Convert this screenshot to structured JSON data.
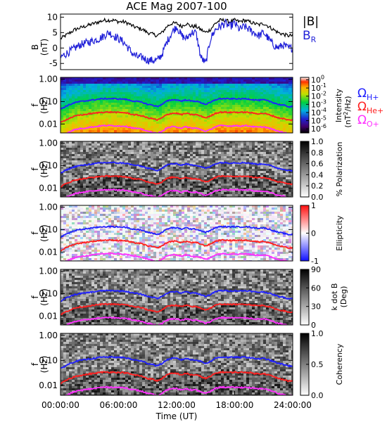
{
  "title": "ACE Mag 2007-100",
  "xaxis": {
    "label": "Time (UT)",
    "ticks": [
      "00:00:00",
      "06:00:00",
      "12:00:00",
      "18:00:00",
      "24:00:00"
    ],
    "tick_hours": [
      0,
      6,
      12,
      18,
      24
    ],
    "range_hours": [
      0,
      24
    ]
  },
  "legend": {
    "b_total": "|B|",
    "b_r_main": "B",
    "b_r_sub": "R",
    "omega_symbol": "Ω",
    "h_sub": "H+",
    "he_sub": "He+",
    "o_sub": "O+"
  },
  "colors": {
    "b_total": "#000000",
    "b_r": "#1f1fd8",
    "h": "#2020ff",
    "he": "#ff2020",
    "o": "#ff30ff"
  },
  "freq_axis": {
    "label_main": "f",
    "label_unit": "(Hz)",
    "ticks": [
      "1.00",
      "0.10",
      "0.01"
    ],
    "tick_values": [
      1.0,
      0.1,
      0.01
    ],
    "range": [
      0.004,
      1.2
    ],
    "scale": "log"
  },
  "chart_data": [
    {
      "type": "line",
      "name": "magnetic-field",
      "ylabel_main": "B",
      "ylabel_unit": "(nT)",
      "ylim": [
        -7,
        11
      ],
      "yticks": [
        "10",
        "5",
        "0",
        "-5"
      ],
      "ytick_values": [
        10,
        5,
        0,
        -5
      ],
      "x_hours": [
        0,
        0.5,
        1,
        1.5,
        2,
        2.5,
        3,
        3.5,
        4,
        4.5,
        5,
        5.5,
        6,
        6.5,
        7,
        7.5,
        8,
        8.5,
        9,
        9.5,
        10,
        10.5,
        11,
        11.5,
        12,
        12.5,
        13,
        13.5,
        14,
        14.5,
        15,
        15.5,
        16,
        16.5,
        17,
        17.5,
        18,
        18.5,
        19,
        19.5,
        20,
        20.5,
        21,
        21.5,
        22,
        22.5,
        23,
        23.5,
        24
      ],
      "series": [
        {
          "name": "|B|",
          "values": [
            3,
            4,
            5,
            6,
            6.5,
            7,
            7.5,
            8,
            8.5,
            9,
            9,
            9,
            8.5,
            8.5,
            8,
            7,
            6.5,
            6,
            5,
            4.5,
            4,
            5,
            7,
            8,
            8,
            7,
            8,
            7,
            7,
            6,
            5,
            6,
            8,
            9,
            9,
            8.5,
            9,
            8.5,
            9,
            8.5,
            8,
            7.5,
            8,
            7,
            6,
            5,
            4.5,
            4,
            4
          ]
        },
        {
          "name": "B_R",
          "values": [
            -3,
            -2,
            -1,
            0,
            1,
            1.5,
            2,
            2.5,
            3,
            4,
            5,
            4,
            3,
            2,
            0,
            -2,
            -3,
            -3,
            -4,
            -4,
            -4,
            -2,
            2,
            5,
            7,
            4,
            3,
            5,
            5,
            -3,
            -5,
            3,
            6,
            7,
            8,
            7,
            8,
            6,
            7,
            6,
            5,
            4,
            5,
            3,
            1,
            0,
            1,
            0,
            0
          ]
        }
      ]
    },
    {
      "type": "heatmap",
      "name": "power-spectral-density",
      "colorbar_label": "Intensity (nT²/Hz)",
      "colorbar_label_parts": [
        "Intensity",
        "(nT",
        "2",
        "/Hz)"
      ],
      "colorbar_ticks": [
        "10",
        "10",
        "10",
        "10",
        "10",
        "10",
        "10"
      ],
      "colorbar_tick_exponents": [
        "0",
        "-1",
        "-2",
        "-3",
        "-4",
        "-5",
        "-6"
      ],
      "colorbar_tick_values": [
        0,
        -1,
        -2,
        -3,
        -4,
        -5,
        -6
      ],
      "crange_log10": [
        -6.5,
        0.3
      ]
    },
    {
      "type": "heatmap",
      "name": "percent-polarization",
      "colorbar_label": "% Polarization",
      "colorbar_ticks": [
        "1.0",
        "0.8",
        "0.6",
        "0.4",
        "0.2",
        "0.0"
      ],
      "colorbar_tick_values": [
        1.0,
        0.8,
        0.6,
        0.4,
        0.2,
        0.0
      ],
      "crange": [
        0,
        1
      ]
    },
    {
      "type": "heatmap",
      "name": "ellipticity",
      "colorbar_label": "Ellipticity",
      "colorbar_ticks": [
        "1",
        "0",
        "-1"
      ],
      "colorbar_tick_values": [
        1,
        0,
        -1
      ],
      "crange": [
        -1,
        1
      ]
    },
    {
      "type": "heatmap",
      "name": "k-dot-b",
      "colorbar_label_line1": "k dot B",
      "colorbar_label_line2": "(Deg)",
      "colorbar_ticks": [
        "90",
        "60",
        "30",
        "0"
      ],
      "colorbar_tick_values": [
        90,
        60,
        30,
        0
      ],
      "crange": [
        0,
        90
      ]
    },
    {
      "type": "heatmap",
      "name": "coherency",
      "colorbar_label": "Coherency",
      "colorbar_ticks": [
        "1.0",
        "0.5",
        "0.0"
      ],
      "colorbar_tick_values": [
        1.0,
        0.5,
        0.0
      ],
      "crange": [
        0,
        1
      ]
    }
  ],
  "gyrofrequency": {
    "x_hours": [
      0,
      0.5,
      1,
      1.5,
      2,
      2.5,
      3,
      3.5,
      4,
      4.5,
      5,
      5.5,
      6,
      6.5,
      7,
      7.5,
      8,
      8.5,
      9,
      9.5,
      10,
      10.5,
      11,
      11.5,
      12,
      12.5,
      13,
      13.5,
      14,
      14.5,
      15,
      15.5,
      16,
      16.5,
      17,
      17.5,
      18,
      18.5,
      19,
      19.5,
      20,
      20.5,
      21,
      21.5,
      22,
      22.5,
      23,
      23.5,
      24
    ],
    "h_hz": [
      0.045,
      0.06,
      0.075,
      0.09,
      0.1,
      0.105,
      0.115,
      0.12,
      0.13,
      0.135,
      0.135,
      0.135,
      0.13,
      0.13,
      0.12,
      0.105,
      0.1,
      0.09,
      0.075,
      0.07,
      0.06,
      0.075,
      0.105,
      0.12,
      0.12,
      0.105,
      0.12,
      0.105,
      0.105,
      0.09,
      0.075,
      0.09,
      0.12,
      0.135,
      0.135,
      0.13,
      0.135,
      0.13,
      0.135,
      0.13,
      0.12,
      0.115,
      0.12,
      0.105,
      0.09,
      0.075,
      0.07,
      0.06,
      0.06
    ],
    "he_divisor": 4,
    "o_divisor": 16
  }
}
